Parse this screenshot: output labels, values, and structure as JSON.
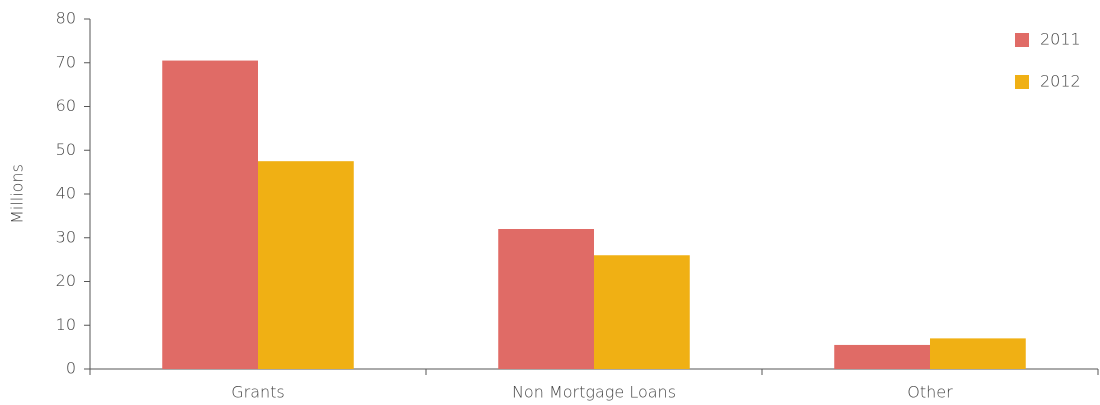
{
  "chart_data": {
    "type": "bar",
    "y_label": "Millions",
    "categories": [
      "Grants",
      "Non Mortgage Loans",
      "Other"
    ],
    "series": [
      {
        "name": "2011",
        "color": "#e06b66",
        "values": [
          70.5,
          32,
          5.5
        ]
      },
      {
        "name": "2012",
        "color": "#f0b014",
        "values": [
          47.5,
          26,
          7
        ]
      }
    ],
    "ylim": [
      0,
      80
    ],
    "yticks": [
      0,
      10,
      20,
      30,
      40,
      50,
      60,
      70,
      80
    ],
    "legend": "top-right",
    "grid": false
  }
}
